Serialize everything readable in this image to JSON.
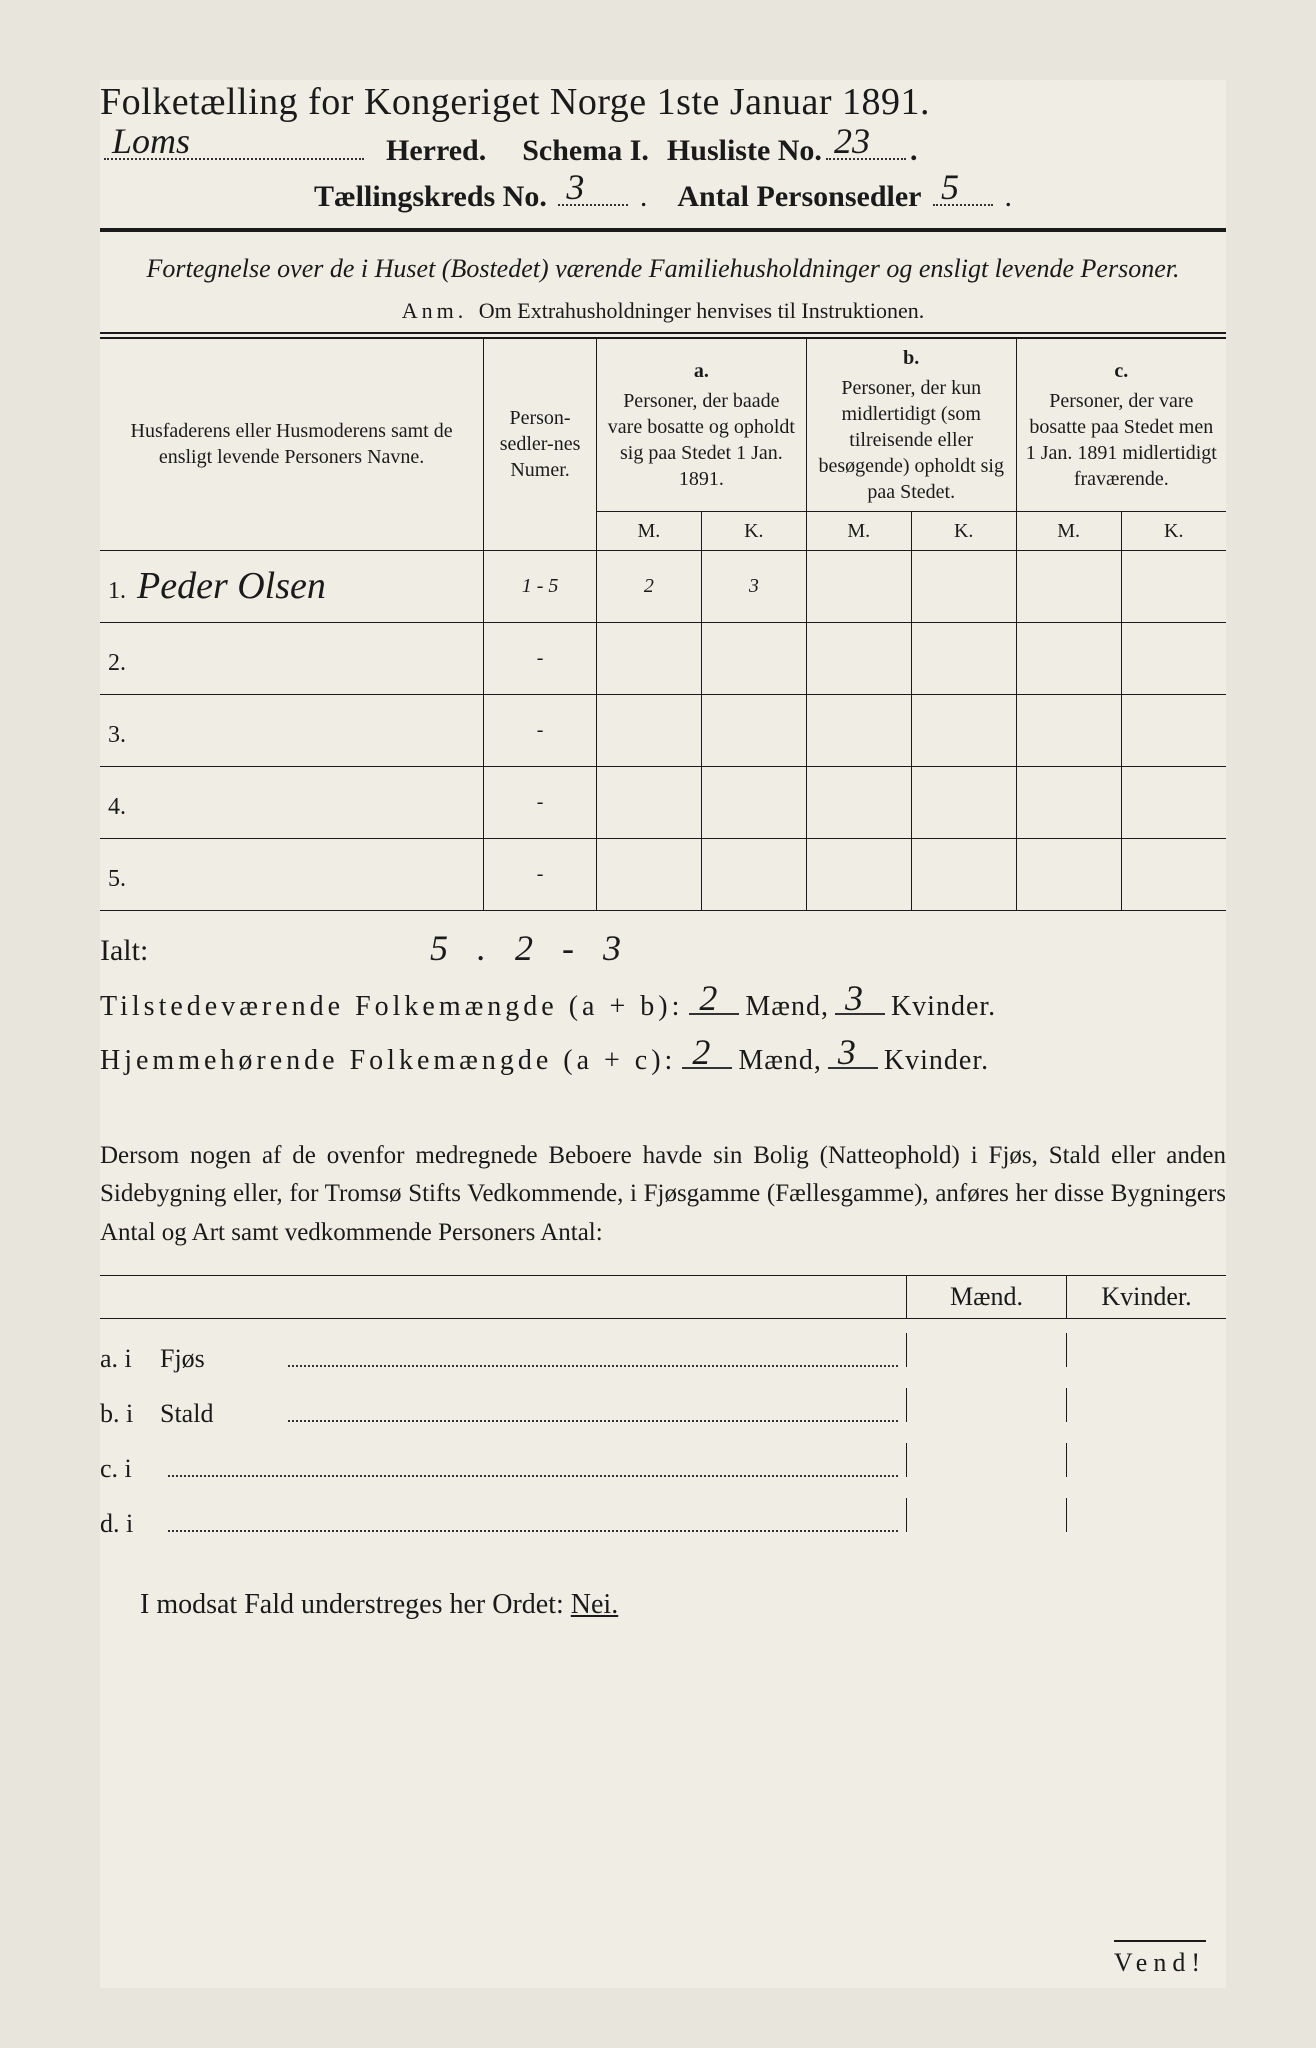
{
  "title": "Folketælling for Kongeriget Norge 1ste Januar 1891.",
  "header": {
    "herred_value": "Loms",
    "herred_label": "Herred.",
    "schema_label": "Schema I.",
    "husliste_label": "Husliste No.",
    "husliste_value": "23",
    "kreds_label": "Tællingskreds No.",
    "kreds_value": "3",
    "personsedler_label": "Antal Personsedler",
    "personsedler_value": "5"
  },
  "subtitle": "Fortegnelse over de i Huset (Bostedet) værende Familiehusholdninger og ensligt levende Personer.",
  "anm_label": "Anm.",
  "anm_text": "Om Extrahusholdninger henvises til Instruktionen.",
  "table": {
    "col_name": "Husfaderens eller Husmoderens samt de ensligt levende Personers Navne.",
    "col_num": "Person-sedler-nes Numer.",
    "col_a_letter": "a.",
    "col_a": "Personer, der baade vare bosatte og opholdt sig paa Stedet 1 Jan. 1891.",
    "col_b_letter": "b.",
    "col_b": "Personer, der kun midlertidigt (som tilreisende eller besøgende) opholdt sig paa Stedet.",
    "col_c_letter": "c.",
    "col_c": "Personer, der vare bosatte paa Stedet men 1 Jan. 1891 midlertidigt fraværende.",
    "m": "M.",
    "k": "K.",
    "rows": [
      {
        "n": "1.",
        "name": "Peder Olsen",
        "num": "1 - 5",
        "a_m": "2",
        "a_k": "3",
        "b_m": "",
        "b_k": "",
        "c_m": "",
        "c_k": ""
      },
      {
        "n": "2.",
        "name": "",
        "num": "-",
        "a_m": "",
        "a_k": "",
        "b_m": "",
        "b_k": "",
        "c_m": "",
        "c_k": ""
      },
      {
        "n": "3.",
        "name": "",
        "num": "-",
        "a_m": "",
        "a_k": "",
        "b_m": "",
        "b_k": "",
        "c_m": "",
        "c_k": ""
      },
      {
        "n": "4.",
        "name": "",
        "num": "-",
        "a_m": "",
        "a_k": "",
        "b_m": "",
        "b_k": "",
        "c_m": "",
        "c_k": ""
      },
      {
        "n": "5.",
        "name": "",
        "num": "-",
        "a_m": "",
        "a_k": "",
        "b_m": "",
        "b_k": "",
        "c_m": "",
        "c_k": ""
      }
    ]
  },
  "ialt": {
    "label": "Ialt:",
    "vals": "5 . 2 - 3"
  },
  "summary": {
    "line1_label": "Tilstedeværende Folkemængde (a + b):",
    "line2_label": "Hjemmehørende Folkemængde (a + c):",
    "maend": "Mænd,",
    "kvinder": "Kvinder.",
    "l1_m": "2",
    "l1_k": "3",
    "l2_m": "2",
    "l2_k": "3"
  },
  "para": "Dersom nogen af de ovenfor medregnede Beboere havde sin Bolig (Natteophold) i Fjøs, Stald eller anden Sidebygning eller, for Tromsø Stifts Vedkommende, i Fjøsgamme (Fællesgamme), anføres her disse Bygningers Antal og Art samt vedkommende Personers Antal:",
  "buildings": {
    "maend": "Mænd.",
    "kvinder": "Kvinder.",
    "a": "a.  i",
    "a2": "Fjøs",
    "b": "b.  i",
    "b2": "Stald",
    "c": "c.  i",
    "d": "d.  i"
  },
  "nei_line_pre": "I modsat Fald understreges her Ordet: ",
  "nei": "Nei.",
  "vend": "Vend!"
}
